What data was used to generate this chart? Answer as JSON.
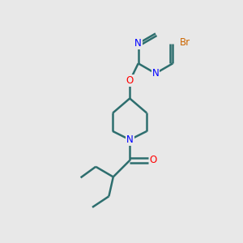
{
  "bg_color": "#e8e8e8",
  "bond_color": "#2d6e6e",
  "N_color": "#0000ff",
  "O_color": "#ff0000",
  "Br_color": "#cc6600",
  "line_width": 1.8,
  "font_size_atom": 8.5,
  "fig_w": 3.0,
  "fig_h": 3.0,
  "dpi": 100,
  "xlim": [
    0,
    10
  ],
  "ylim": [
    0,
    10
  ]
}
